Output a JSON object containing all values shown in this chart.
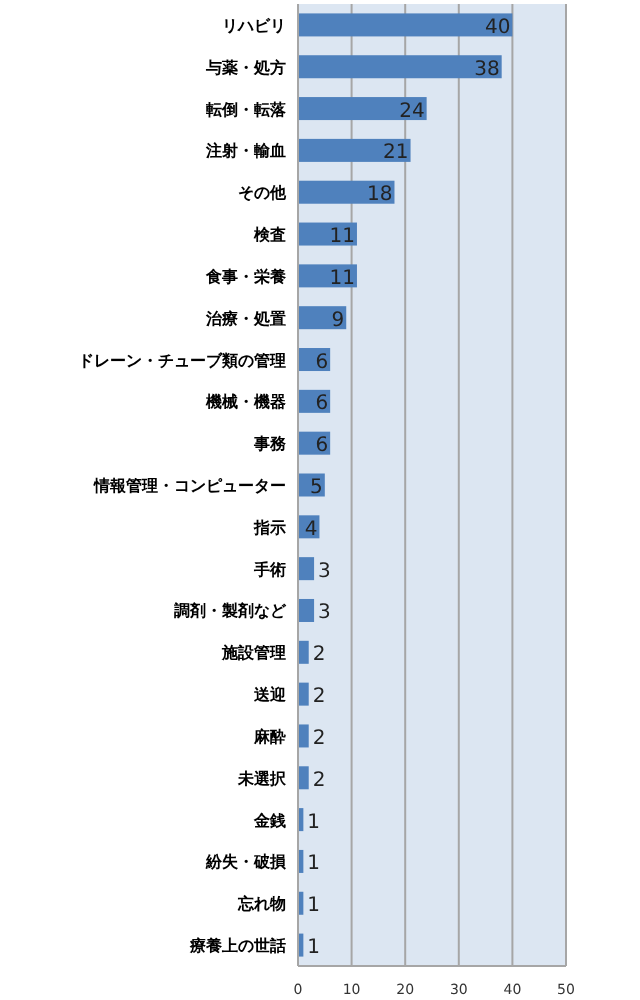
{
  "chart_data": {
    "type": "bar",
    "orientation": "horizontal",
    "data_labels": true,
    "grid": "x",
    "color": "#4f81bd",
    "categories": [
      "リハビリ",
      "与薬・処方",
      "転倒・転落",
      "注射・輸血",
      "その他",
      "検査",
      "食事・栄養",
      "治療・処置",
      "ドレーン・チューブ類の管理",
      "機械・機器",
      "事務",
      "情報管理・コンピューター",
      "指示",
      "手術",
      "調剤・製剤など",
      "施設管理",
      "送迎",
      "麻酔",
      "未選択",
      "金銭",
      "紛失・破損",
      "忘れ物",
      "療養上の世話"
    ],
    "values": [
      40,
      38,
      24,
      21,
      18,
      11,
      11,
      9,
      6,
      6,
      6,
      5,
      4,
      3,
      3,
      2,
      2,
      2,
      2,
      1,
      1,
      1,
      1
    ],
    "xlim": [
      0,
      50
    ],
    "xticks": [
      0,
      10,
      20,
      30,
      40,
      50
    ]
  }
}
